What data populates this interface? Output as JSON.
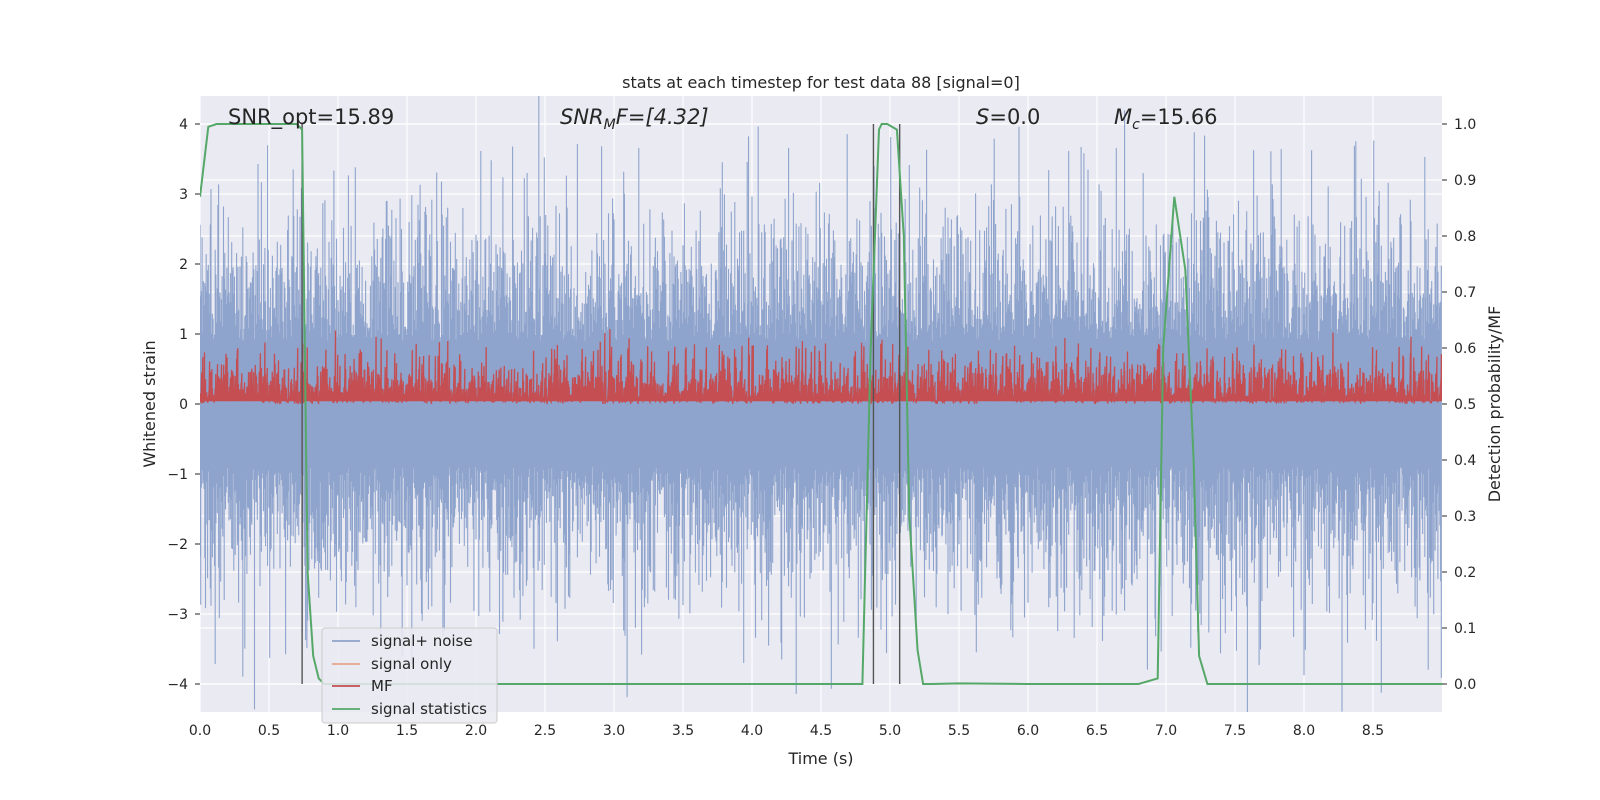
{
  "chart_data": {
    "type": "line",
    "title": "stats at each timestep for test data 88 [signal=0]",
    "xlabel": "Time (s)",
    "ylabel_left": "Whitened strain",
    "ylabel_right": "Detection probability/MF",
    "xlim": [
      0.0,
      9.0
    ],
    "ylim_left": [
      -4.4,
      4.4
    ],
    "ylim_right": [
      -0.05,
      1.05
    ],
    "x_ticks": [
      0.0,
      0.5,
      1.0,
      1.5,
      2.0,
      2.5,
      3.0,
      3.5,
      4.0,
      4.5,
      5.0,
      5.5,
      6.0,
      6.5,
      7.0,
      7.5,
      8.0,
      8.5
    ],
    "x_tick_labels": [
      "0.0",
      "0.5",
      "1.0",
      "1.5",
      "2.0",
      "2.5",
      "3.0",
      "3.5",
      "4.0",
      "4.5",
      "5.0",
      "5.5",
      "6.0",
      "6.5",
      "7.0",
      "7.5",
      "8.0",
      "8.5"
    ],
    "y_left_ticks": [
      -4,
      -3,
      -2,
      -1,
      0,
      1,
      2,
      3,
      4
    ],
    "y_left_tick_labels": [
      "−4",
      "−3",
      "−2",
      "−1",
      "0",
      "1",
      "2",
      "3",
      "4"
    ],
    "y_right_ticks": [
      0.0,
      0.1,
      0.2,
      0.3,
      0.4,
      0.5,
      0.6,
      0.7,
      0.8,
      0.9,
      1.0
    ],
    "y_right_tick_labels": [
      "0.0",
      "0.1",
      "0.2",
      "0.3",
      "0.4",
      "0.5",
      "0.6",
      "0.7",
      "0.8",
      "0.9",
      "1.0"
    ],
    "grid": true,
    "legend_position": "lower-left",
    "series": [
      {
        "name": "signal+ noise",
        "color": "#8fa4cc",
        "axis": "left",
        "description_value": "noisy whitened strain, mostly within ±1.6, spikes up to about ±3.9",
        "typical_amplitude": 1.3,
        "spike_amplitude": 3.9
      },
      {
        "name": "signal only",
        "color": "#e8a48c",
        "axis": "left",
        "values": []
      },
      {
        "name": "MF",
        "color": "#c44e52",
        "axis": "right",
        "baseline": 0.5,
        "typical_high": 0.56,
        "spike_high": 0.6
      },
      {
        "name": "signal statistics",
        "color": "#55a868",
        "axis": "right",
        "x": [
          0.0,
          0.06,
          0.12,
          0.2,
          0.4,
          0.6,
          0.7,
          0.74,
          0.78,
          0.82,
          0.86,
          0.9,
          1.0,
          2.0,
          3.0,
          4.0,
          4.5,
          4.8,
          4.86,
          4.92,
          4.94,
          4.98,
          5.05,
          5.1,
          5.14,
          5.2,
          5.24,
          5.3,
          5.5,
          6.0,
          6.5,
          6.8,
          6.94,
          6.98,
          7.06,
          7.14,
          7.2,
          7.24,
          7.3,
          7.4,
          8.0,
          9.0
        ],
        "y": [
          0.87,
          0.995,
          1.0,
          1.0,
          1.0,
          1.0,
          1.0,
          0.99,
          0.2,
          0.05,
          0.01,
          0.0,
          0.0,
          0.0,
          0.0,
          0.0,
          0.0,
          0.0,
          0.6,
          0.99,
          1.0,
          1.0,
          0.99,
          0.8,
          0.3,
          0.06,
          0.0,
          0.0,
          0.001,
          0.0,
          0.0,
          0.0,
          0.01,
          0.6,
          0.87,
          0.74,
          0.4,
          0.05,
          0.0,
          0.0,
          0.0,
          0.0
        ]
      }
    ],
    "vertical_markers": [
      0.74,
      4.88,
      5.07
    ],
    "annotations": {
      "snr_opt": "SNR_opt=15.89",
      "snr_mf_base": "SNR",
      "snr_mf_sub": "M",
      "snr_mf_rest": "F=[4.32]",
      "s_var": "S",
      "s_rest": "=0.0",
      "mc_var": "M",
      "mc_sub": "c",
      "mc_rest": "=15.66"
    }
  }
}
